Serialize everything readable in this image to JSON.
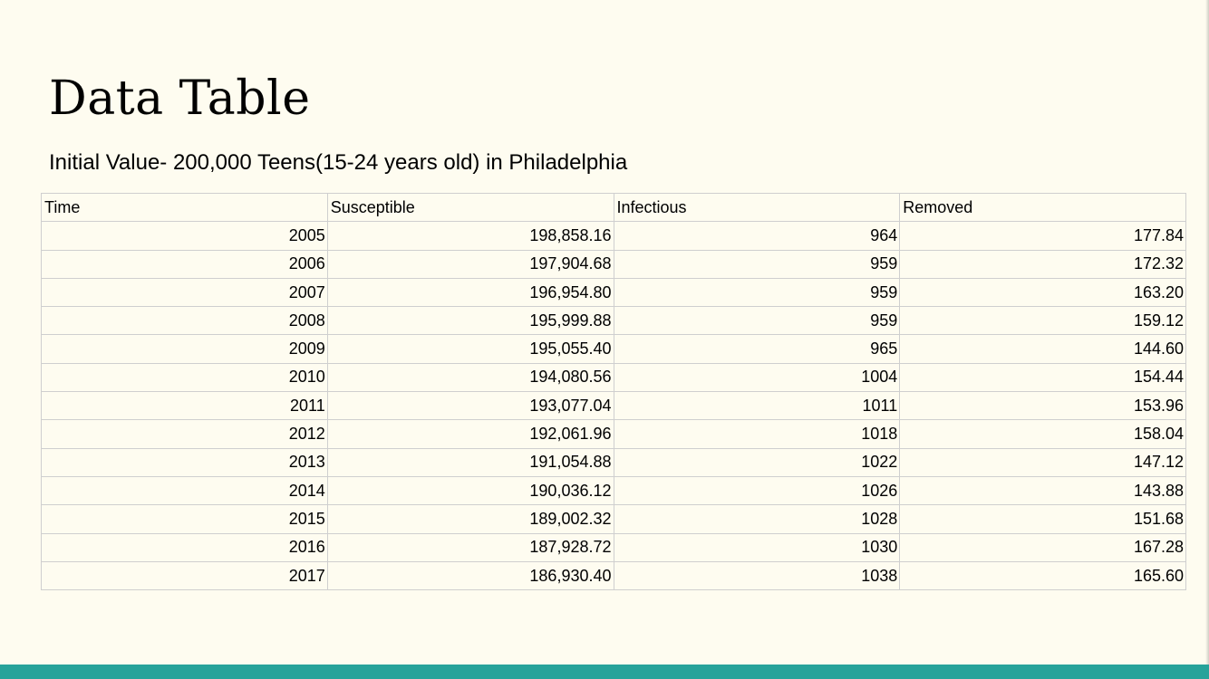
{
  "slide": {
    "title": "Data Table",
    "subtitle": "Initial Value- 200,000 Teens(15-24 years old) in Philadelphia",
    "accent_color": "#27a39a",
    "background_color": "#fefcf0"
  },
  "table": {
    "headers": [
      "Time",
      "Susceptible",
      "Infectious",
      "Removed"
    ],
    "rows": [
      [
        "2005",
        "198,858.16",
        "964",
        "177.84"
      ],
      [
        "2006",
        "197,904.68",
        "959",
        "172.32"
      ],
      [
        "2007",
        "196,954.80",
        "959",
        "163.20"
      ],
      [
        "2008",
        "195,999.88",
        "959",
        "159.12"
      ],
      [
        "2009",
        "195,055.40",
        "965",
        "144.60"
      ],
      [
        "2010",
        "194,080.56",
        "1004",
        "154.44"
      ],
      [
        "2011",
        "193,077.04",
        "1011",
        "153.96"
      ],
      [
        "2012",
        "192,061.96",
        "1018",
        "158.04"
      ],
      [
        "2013",
        "191,054.88",
        "1022",
        "147.12"
      ],
      [
        "2014",
        "190,036.12",
        "1026",
        "143.88"
      ],
      [
        "2015",
        "189,002.32",
        "1028",
        "151.68"
      ],
      [
        "2016",
        "187,928.72",
        "1030",
        "167.28"
      ],
      [
        "2017",
        "186,930.40",
        "1038",
        "165.60"
      ]
    ]
  }
}
